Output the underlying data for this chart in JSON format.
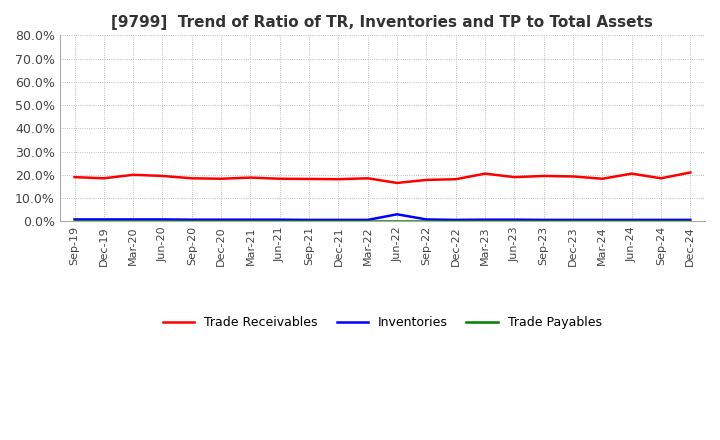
{
  "title": "[9799]  Trend of Ratio of TR, Inventories and TP to Total Assets",
  "title_fontsize": 11,
  "background_color": "#ffffff",
  "plot_background_color": "#ffffff",
  "grid_color": "#aaaaaa",
  "ylim": [
    0.0,
    0.8
  ],
  "yticks": [
    0.0,
    0.1,
    0.2,
    0.3,
    0.4,
    0.5,
    0.6,
    0.7,
    0.8
  ],
  "ytick_labels": [
    "0.0%",
    "10.0%",
    "20.0%",
    "30.0%",
    "40.0%",
    "50.0%",
    "60.0%",
    "70.0%",
    "80.0%"
  ],
  "dates": [
    "Sep-19",
    "Dec-19",
    "Mar-20",
    "Jun-20",
    "Sep-20",
    "Dec-20",
    "Mar-21",
    "Jun-21",
    "Sep-21",
    "Dec-21",
    "Mar-22",
    "Jun-22",
    "Sep-22",
    "Dec-22",
    "Mar-23",
    "Jun-23",
    "Sep-23",
    "Dec-23",
    "Mar-24",
    "Jun-24",
    "Sep-24",
    "Dec-24"
  ],
  "trade_receivables": [
    0.19,
    0.185,
    0.2,
    0.195,
    0.185,
    0.183,
    0.188,
    0.183,
    0.182,
    0.181,
    0.185,
    0.165,
    0.178,
    0.181,
    0.205,
    0.19,
    0.195,
    0.193,
    0.183,
    0.205,
    0.185,
    0.21
  ],
  "inventories": [
    0.008,
    0.008,
    0.008,
    0.008,
    0.007,
    0.007,
    0.007,
    0.007,
    0.006,
    0.006,
    0.006,
    0.03,
    0.008,
    0.006,
    0.007,
    0.007,
    0.006,
    0.006,
    0.006,
    0.006,
    0.006,
    0.006
  ],
  "trade_payables": [
    0.002,
    0.002,
    0.002,
    0.002,
    0.002,
    0.002,
    0.002,
    0.002,
    0.002,
    0.002,
    0.002,
    0.002,
    0.002,
    0.002,
    0.002,
    0.002,
    0.002,
    0.002,
    0.002,
    0.002,
    0.002,
    0.002
  ],
  "series_colors": {
    "trade_receivables": "#ff0000",
    "inventories": "#0000ff",
    "trade_payables": "#008000"
  },
  "legend_labels": {
    "trade_receivables": "Trade Receivables",
    "inventories": "Inventories",
    "trade_payables": "Trade Payables"
  }
}
